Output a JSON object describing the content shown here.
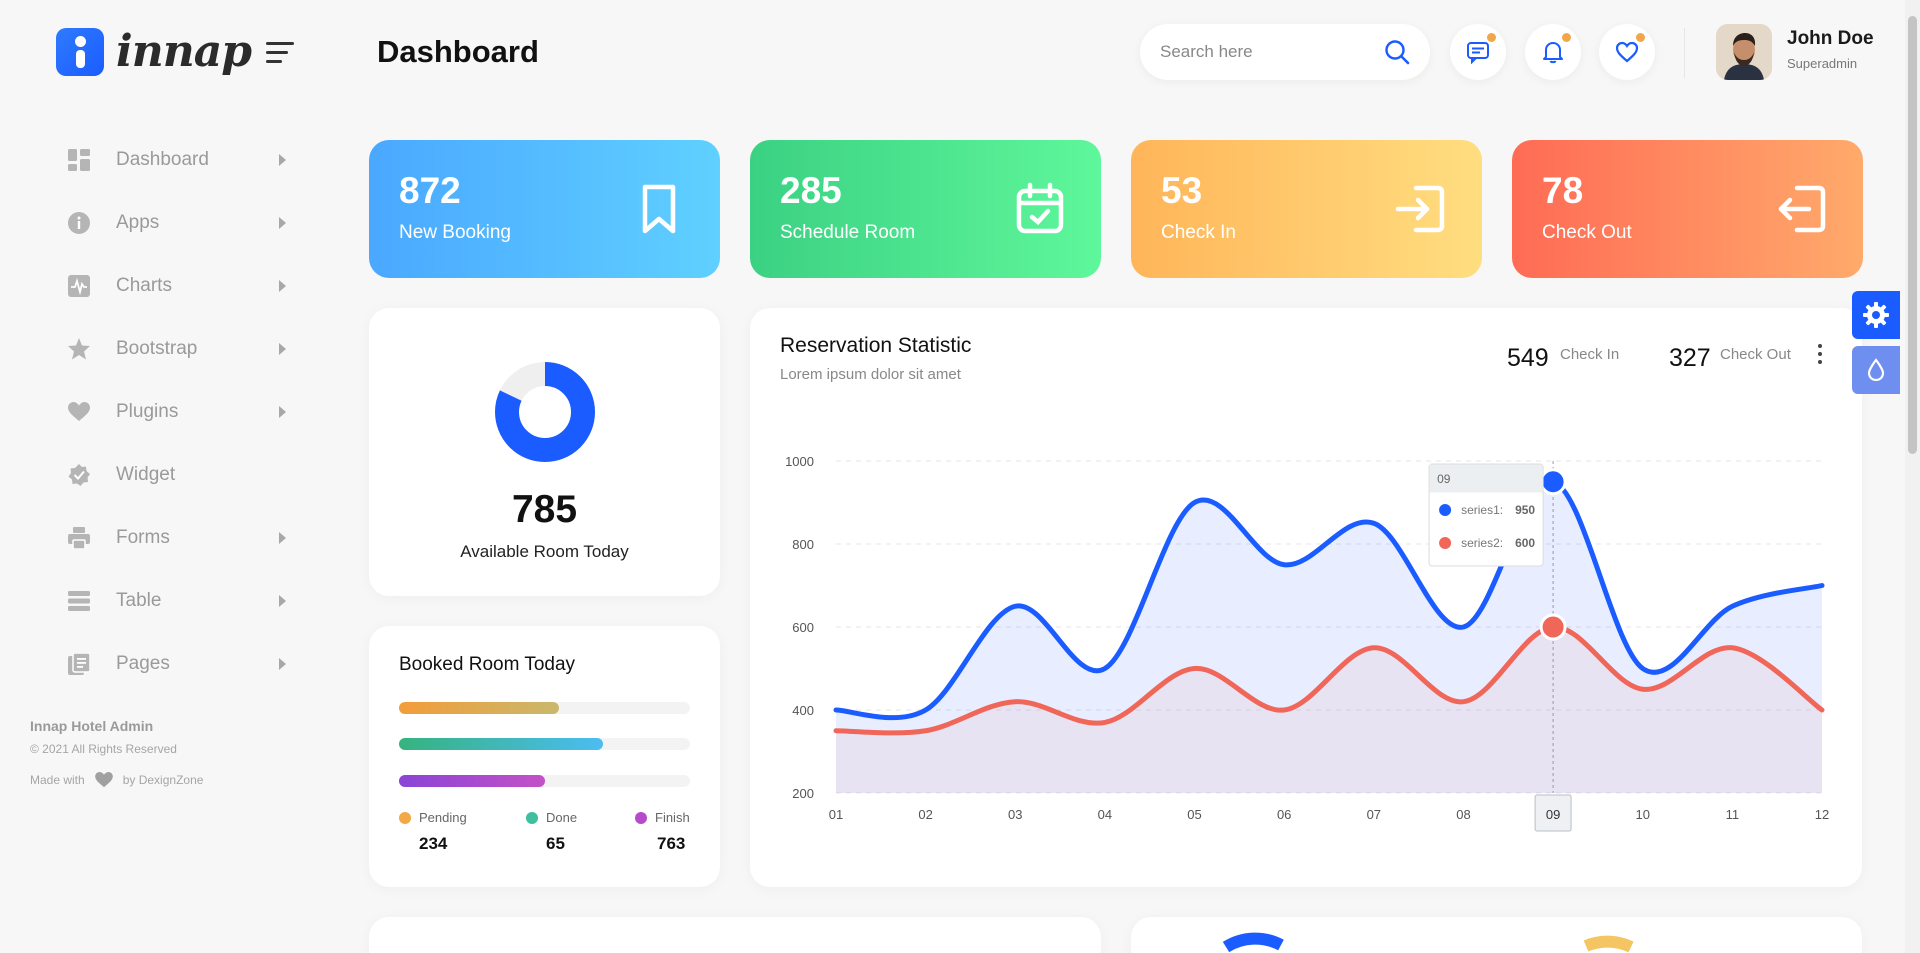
{
  "brand": {
    "name": "innap"
  },
  "header": {
    "title": "Dashboard",
    "search_placeholder": "Search here"
  },
  "user": {
    "name": "John Doe",
    "role": "Superadmin"
  },
  "sidebar": {
    "items": [
      {
        "label": "Dashboard",
        "icon": "grid-icon",
        "has_arrow": true
      },
      {
        "label": "Apps",
        "icon": "info-icon",
        "has_arrow": true
      },
      {
        "label": "Charts",
        "icon": "pulse-icon",
        "has_arrow": true
      },
      {
        "label": "Bootstrap",
        "icon": "star-icon",
        "has_arrow": true
      },
      {
        "label": "Plugins",
        "icon": "heart-icon",
        "has_arrow": true
      },
      {
        "label": "Widget",
        "icon": "badge-check-icon",
        "has_arrow": false
      },
      {
        "label": "Forms",
        "icon": "printer-icon",
        "has_arrow": true
      },
      {
        "label": "Table",
        "icon": "list-icon",
        "has_arrow": true
      },
      {
        "label": "Pages",
        "icon": "pages-icon",
        "has_arrow": true
      }
    ],
    "footer": {
      "title": "Innap Hotel Admin",
      "copyright": "© 2021 All Rights Reserved",
      "made_with": "Made with",
      "by": "by DexignZone"
    }
  },
  "stats": [
    {
      "value": "872",
      "label": "New Booking",
      "icon": "bookmark-icon",
      "gradient": [
        "#4aa8ff",
        "#5fd0ff"
      ]
    },
    {
      "value": "285",
      "label": "Schedule Room",
      "icon": "calendar-check-icon",
      "gradient": [
        "#3bd183",
        "#5ff79b"
      ]
    },
    {
      "value": "53",
      "label": "Check In",
      "icon": "login-icon",
      "gradient": [
        "#ffb559",
        "#ffde80"
      ]
    },
    {
      "value": "78",
      "label": "Check Out",
      "icon": "logout-icon",
      "gradient": [
        "#ff6b55",
        "#ffaa6b"
      ]
    }
  ],
  "available": {
    "value": "785",
    "label": "Available Room Today",
    "fraction": 0.82,
    "color": "#1a5cff"
  },
  "booked": {
    "title": "Booked Room Today",
    "bars": [
      {
        "fraction": 0.55,
        "from": "#f39c3a",
        "to": "#c9b86b"
      },
      {
        "fraction": 0.7,
        "from": "#36b37e",
        "to": "#4cbcf2"
      },
      {
        "fraction": 0.5,
        "from": "#8a44d6",
        "to": "#c451c7"
      }
    ],
    "legend": [
      {
        "label": "Pending",
        "value": "234",
        "color": "#f2a945"
      },
      {
        "label": "Done",
        "value": "65",
        "color": "#3dbfa0"
      },
      {
        "label": "Finish",
        "value": "763",
        "color": "#b54bcb"
      }
    ]
  },
  "reservation": {
    "title": "Reservation Statistic",
    "subtitle": "Lorem ipsum dolor sit amet",
    "checkin_value": "549",
    "checkin_label": "Check In",
    "checkout_value": "327",
    "checkout_label": "Check Out"
  },
  "chart_data": {
    "type": "area",
    "x": [
      "01",
      "02",
      "03",
      "04",
      "05",
      "06",
      "07",
      "08",
      "09",
      "10",
      "11",
      "12"
    ],
    "ylim": [
      200,
      1000
    ],
    "yticks": [
      "1000",
      "800",
      "600",
      "400",
      "200"
    ],
    "grid": true,
    "series": [
      {
        "name": "series1",
        "color": "#1a5cff",
        "values": [
          400,
          400,
          650,
          500,
          900,
          750,
          850,
          600,
          950,
          500,
          650,
          700
        ]
      },
      {
        "name": "series2",
        "color": "#f0675a",
        "values": [
          350,
          350,
          420,
          370,
          500,
          400,
          550,
          420,
          600,
          450,
          550,
          400
        ]
      }
    ],
    "tooltip": {
      "x": "09",
      "rows": [
        {
          "label": "series1:",
          "value": "950",
          "color": "#1a5cff"
        },
        {
          "label": "series2:",
          "value": "600",
          "color": "#f0675a"
        }
      ]
    },
    "highlight_x": "09"
  }
}
